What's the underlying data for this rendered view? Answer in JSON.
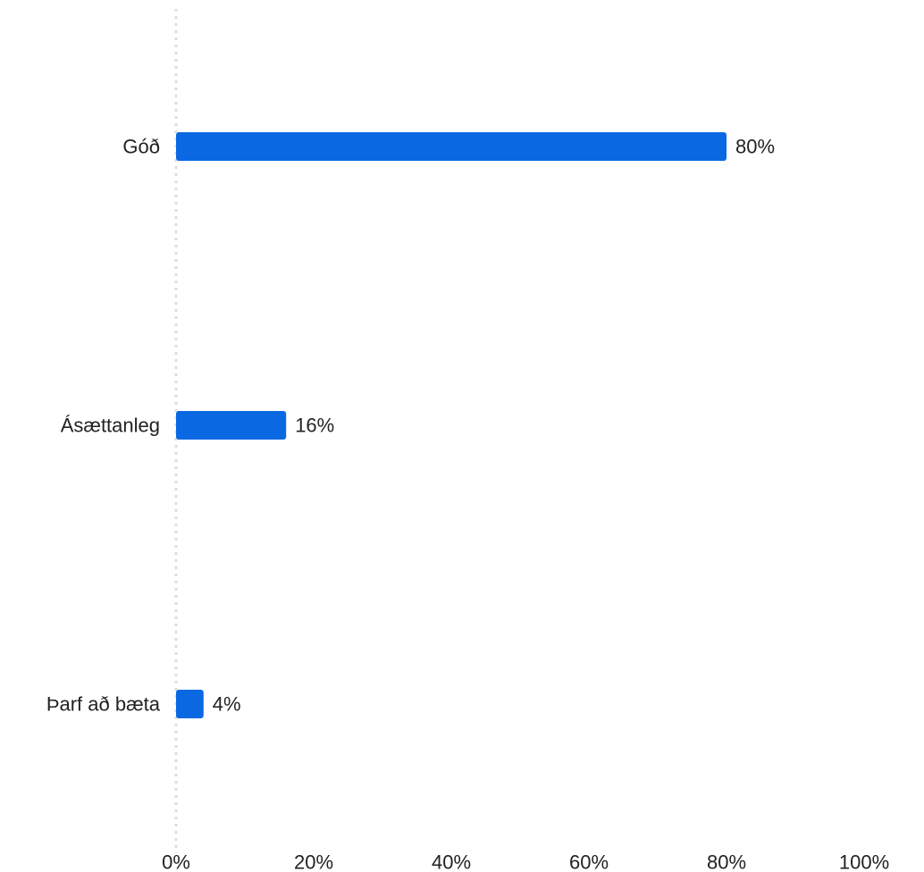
{
  "chart_data": {
    "type": "bar",
    "orientation": "horizontal",
    "categories": [
      "Góð",
      "Ásættanleg",
      "Þarf að bæta"
    ],
    "values": [
      80,
      16,
      4
    ],
    "value_labels": [
      "80%",
      "16%",
      "4%"
    ],
    "title": "",
    "xlabel": "",
    "ylabel": "",
    "xlim": [
      0,
      100
    ],
    "x_ticks": [
      0,
      20,
      40,
      60,
      80,
      100
    ],
    "x_tick_labels": [
      "0%",
      "20%",
      "40%",
      "60%",
      "80%",
      "100%"
    ],
    "grid": false,
    "legend": "none",
    "colors": {
      "bar": "#0B68E3",
      "baseline": "#DDDDDD",
      "text": "#222222"
    }
  }
}
